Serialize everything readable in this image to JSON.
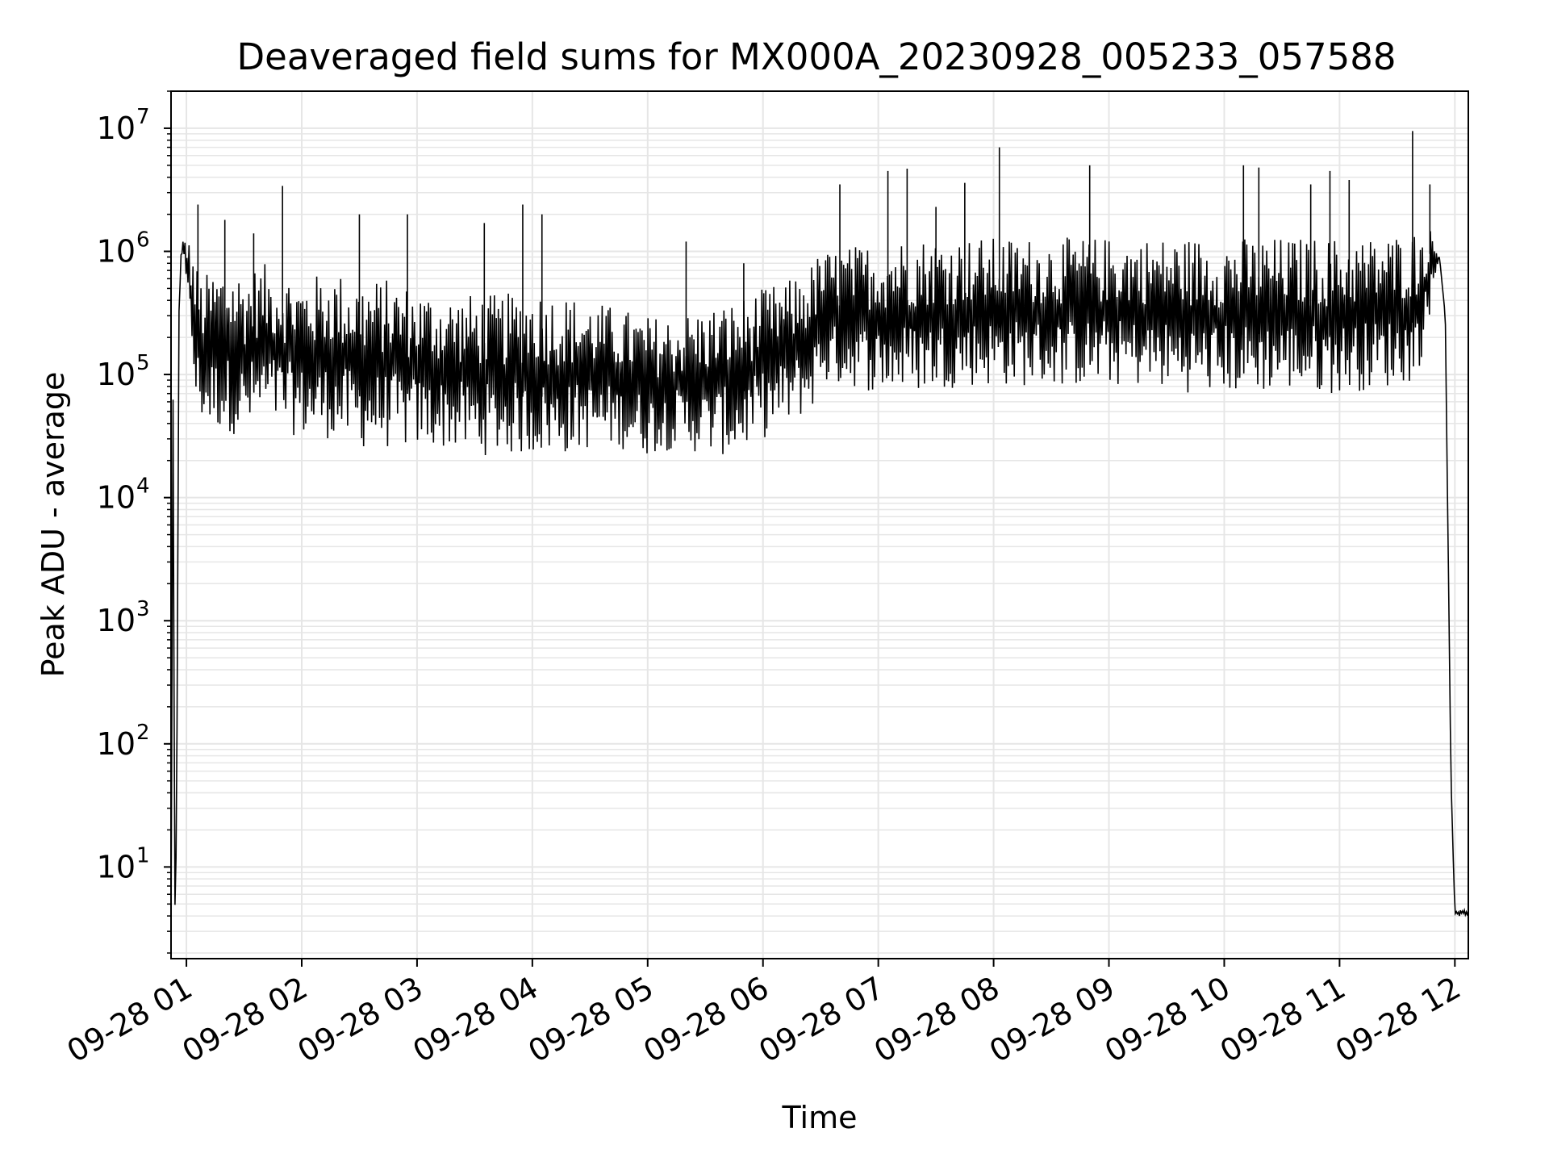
{
  "chart_data": {
    "type": "line",
    "title": "Deaveraged field sums for MX000A_20230928_005233_057588",
    "xlabel": "Time",
    "ylabel": "Peak ADU - average",
    "x_format": "MM-DD HH",
    "xlim": [
      "2023-09-28 00:52",
      "2023-09-28 12:07"
    ],
    "ylim": [
      1.8,
      20000000
    ],
    "yscale": "log",
    "grid": true,
    "line_color": "#000000",
    "grid_color": "#e6e6e6",
    "x_ticks": [
      "09-28 01",
      "09-28 02",
      "09-28 03",
      "09-28 04",
      "09-28 05",
      "09-28 06",
      "09-28 07",
      "09-28 08",
      "09-28 09",
      "09-28 10",
      "09-28 11",
      "09-28 12"
    ],
    "y_ticks": [
      {
        "value": 10,
        "base": "10",
        "exp": "1"
      },
      {
        "value": 100,
        "base": "10",
        "exp": "2"
      },
      {
        "value": 1000,
        "base": "10",
        "exp": "3"
      },
      {
        "value": 10000,
        "base": "10",
        "exp": "4"
      },
      {
        "value": 100000,
        "base": "10",
        "exp": "5"
      },
      {
        "value": 1000000,
        "base": "10",
        "exp": "6"
      },
      {
        "value": 10000000,
        "base": "10",
        "exp": "7"
      }
    ],
    "series": [
      {
        "x": [
          "2023-09-28 00:52",
          "2023-09-28 00:53",
          "2023-09-28 00:54",
          "2023-09-28 00:55",
          "2023-09-28 00:56",
          "2023-09-28 00:57",
          "2023-09-28 00:58",
          "2023-09-28 00:59",
          "2023-09-28 01:02",
          "2023-09-28 01:05",
          "2023-09-28 01:08",
          "2023-09-28 01:12",
          "2023-09-28 01:20",
          "2023-09-28 01:30",
          "2023-09-28 01:40",
          "2023-09-28 01:50",
          "2023-09-28 02:00",
          "2023-09-28 02:15",
          "2023-09-28 02:30",
          "2023-09-28 02:45",
          "2023-09-28 03:00",
          "2023-09-28 03:15",
          "2023-09-28 03:30",
          "2023-09-28 03:45",
          "2023-09-28 04:00",
          "2023-09-28 04:15",
          "2023-09-28 04:30",
          "2023-09-28 04:45",
          "2023-09-28 05:00",
          "2023-09-28 05:15",
          "2023-09-28 05:30",
          "2023-09-28 05:45",
          "2023-09-28 06:00",
          "2023-09-28 06:15",
          "2023-09-28 06:25",
          "2023-09-28 06:30",
          "2023-09-28 06:45",
          "2023-09-28 07:00",
          "2023-09-28 07:15",
          "2023-09-28 07:30",
          "2023-09-28 07:45",
          "2023-09-28 08:00",
          "2023-09-28 08:15",
          "2023-09-28 08:30",
          "2023-09-28 08:45",
          "2023-09-28 09:00",
          "2023-09-28 09:15",
          "2023-09-28 09:30",
          "2023-09-28 09:45",
          "2023-09-28 10:00",
          "2023-09-28 10:15",
          "2023-09-28 10:30",
          "2023-09-28 10:45",
          "2023-09-28 11:00",
          "2023-09-28 11:15",
          "2023-09-28 11:30",
          "2023-09-28 11:40",
          "2023-09-28 11:45",
          "2023-09-28 11:48",
          "2023-09-28 11:52",
          "2023-09-28 11:55",
          "2023-09-28 11:58",
          "2023-09-28 12:00",
          "2023-09-28 12:02",
          "2023-09-28 12:07"
        ],
        "high": [
          3,
          100000,
          4,
          100,
          300000,
          900000,
          1200000,
          1300000,
          1200000,
          800000,
          600000,
          700000,
          800000,
          700000,
          800000,
          700000,
          600000,
          700000,
          600000,
          600000,
          500000,
          450000,
          450000,
          450000,
          500000,
          450000,
          400000,
          350000,
          300000,
          300000,
          350000,
          400000,
          500000,
          600000,
          800000,
          1000000,
          1100000,
          1200000,
          1300000,
          1300000,
          1300000,
          1300000,
          1300000,
          1300000,
          1300000,
          1300000,
          1300000,
          1300000,
          1300000,
          1300000,
          1300000,
          1300000,
          1300000,
          1300000,
          1300000,
          1400000,
          1500000,
          1600000,
          1500000,
          900000,
          300000,
          50,
          4.5,
          4.5,
          4.5
        ],
        "low": [
          2,
          60000,
          3.5,
          15,
          150000,
          800000,
          1000000,
          900000,
          200000,
          50000,
          40000,
          35000,
          35000,
          30000,
          40000,
          35000,
          30000,
          30000,
          25000,
          25000,
          25000,
          25000,
          22000,
          22000,
          22000,
          22000,
          25000,
          25000,
          22000,
          25000,
          22000,
          22000,
          30000,
          40000,
          50000,
          80000,
          80000,
          70000,
          70000,
          75000,
          80000,
          80000,
          80000,
          80000,
          80000,
          80000,
          80000,
          75000,
          70000,
          70000,
          70000,
          75000,
          70000,
          70000,
          75000,
          80000,
          90000,
          200000,
          400000,
          900000,
          300000,
          50,
          4,
          4,
          4
        ]
      }
    ],
    "spikes": [
      {
        "x": "2023-09-28 01:06",
        "y": 2400000
      },
      {
        "x": "2023-09-28 01:20",
        "y": 1800000
      },
      {
        "x": "2023-09-28 01:35",
        "y": 1400000
      },
      {
        "x": "2023-09-28 01:50",
        "y": 3400000
      },
      {
        "x": "2023-09-28 02:30",
        "y": 2000000
      },
      {
        "x": "2023-09-28 02:55",
        "y": 2000000
      },
      {
        "x": "2023-09-28 03:35",
        "y": 1700000
      },
      {
        "x": "2023-09-28 03:55",
        "y": 2400000
      },
      {
        "x": "2023-09-28 04:05",
        "y": 2000000
      },
      {
        "x": "2023-09-28 05:20",
        "y": 1200000
      },
      {
        "x": "2023-09-28 05:50",
        "y": 800000
      },
      {
        "x": "2023-09-28 06:40",
        "y": 3500000
      },
      {
        "x": "2023-09-28 07:05",
        "y": 4500000
      },
      {
        "x": "2023-09-28 07:15",
        "y": 4700000
      },
      {
        "x": "2023-09-28 07:30",
        "y": 2300000
      },
      {
        "x": "2023-09-28 07:45",
        "y": 3600000
      },
      {
        "x": "2023-09-28 08:03",
        "y": 7000000
      },
      {
        "x": "2023-09-28 08:50",
        "y": 5000000
      },
      {
        "x": "2023-09-28 10:10",
        "y": 5000000
      },
      {
        "x": "2023-09-28 10:18",
        "y": 4800000
      },
      {
        "x": "2023-09-28 10:45",
        "y": 3500000
      },
      {
        "x": "2023-09-28 10:55",
        "y": 4500000
      },
      {
        "x": "2023-09-28 11:05",
        "y": 3800000
      },
      {
        "x": "2023-09-28 11:38",
        "y": 9500000
      },
      {
        "x": "2023-09-28 11:47",
        "y": 3500000
      }
    ]
  }
}
